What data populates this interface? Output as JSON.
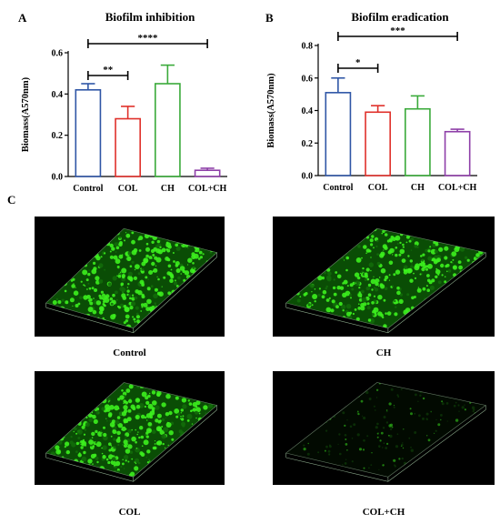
{
  "panels": {
    "a": {
      "letter": "A"
    },
    "b": {
      "letter": "B"
    },
    "c": {
      "letter": "C"
    }
  },
  "chart_data": [
    {
      "type": "bar",
      "title": "Biofilm inhibition",
      "ylabel": "Biomass(A570nm)",
      "xlabel": "",
      "categories": [
        "Control",
        "COL",
        "CH",
        "COL+CH"
      ],
      "values": [
        0.42,
        0.28,
        0.45,
        0.03
      ],
      "errors": [
        0.03,
        0.06,
        0.09,
        0.01
      ],
      "ylim": [
        0,
        0.6
      ],
      "yticks": [
        "0.0",
        "0.2",
        "0.4",
        "0.6"
      ],
      "colors": [
        "#2f56a6",
        "#e0302a",
        "#3aaa3a",
        "#8e3fa8"
      ],
      "significance": [
        {
          "from": 0,
          "to": 1,
          "label": "**"
        },
        {
          "from": 0,
          "to": 3,
          "label": "****"
        }
      ],
      "grid": false
    },
    {
      "type": "bar",
      "title": "Biofilm eradication",
      "ylabel": "Biomass(A570nm)",
      "xlabel": "",
      "categories": [
        "Control",
        "COL",
        "CH",
        "COL+CH"
      ],
      "values": [
        0.51,
        0.39,
        0.41,
        0.27
      ],
      "errors": [
        0.09,
        0.04,
        0.08,
        0.015
      ],
      "ylim": [
        0,
        0.8
      ],
      "yticks": [
        "0.0",
        "0.2",
        "0.4",
        "0.6",
        "0.8"
      ],
      "colors": [
        "#2f56a6",
        "#e0302a",
        "#3aaa3a",
        "#8e3fa8"
      ],
      "significance": [
        {
          "from": 0,
          "to": 1,
          "label": "*"
        },
        {
          "from": 0,
          "to": 3,
          "label": "***"
        }
      ],
      "grid": false
    }
  ],
  "micrographs": [
    {
      "caption": "Control",
      "intensity": 0.62
    },
    {
      "caption": "CH",
      "intensity": 0.68
    },
    {
      "caption": "COL",
      "intensity": 0.55
    },
    {
      "caption": "COL+CH",
      "intensity": 0.12
    }
  ]
}
